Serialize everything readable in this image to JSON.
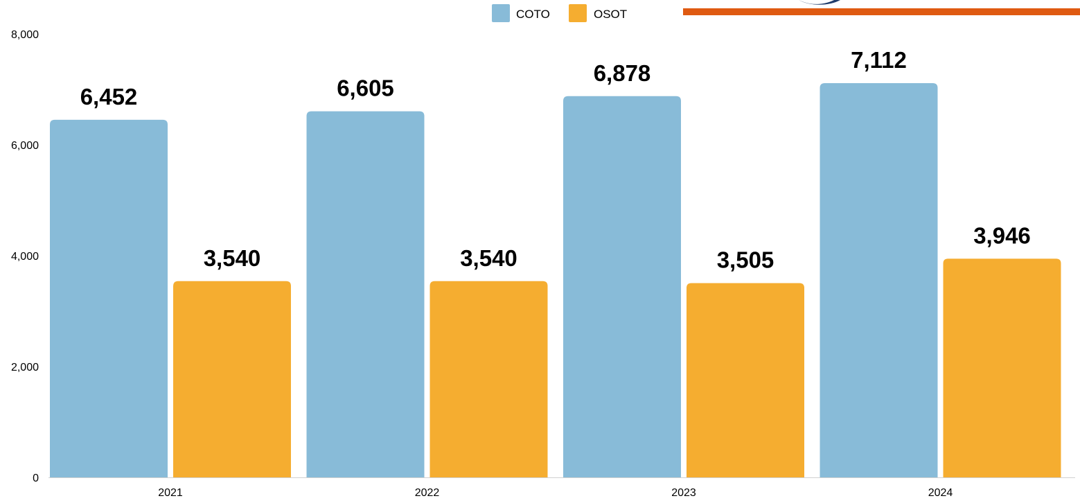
{
  "colors": {
    "coto": "#88bbd8",
    "osot": "#f5ad30",
    "accent_line": "#df5a11",
    "accent_arc": "#1f3c6b",
    "axis_line": "#d0d0d0",
    "text": "#000000"
  },
  "chart_data": {
    "type": "bar",
    "title": "",
    "xlabel": "",
    "ylabel": "",
    "categories": [
      "2021",
      "2022",
      "2023",
      "2024"
    ],
    "series": [
      {
        "name": "COTO",
        "color": "#88bbd8",
        "values": [
          6452,
          6605,
          6878,
          7112
        ],
        "labels": [
          "6,452",
          "6,605",
          "6,878",
          "7,112"
        ]
      },
      {
        "name": "OSOT",
        "color": "#f5ad30",
        "values": [
          3540,
          3540,
          3505,
          3946
        ],
        "labels": [
          "3,540",
          "3,540",
          "3,505",
          "3,946"
        ]
      }
    ],
    "ylim": [
      0,
      8000
    ],
    "yticks": [
      0,
      2000,
      4000,
      6000,
      8000
    ],
    "ytick_labels": [
      "0",
      "2,000",
      "4,000",
      "6,000",
      "8,000"
    ],
    "grid": false,
    "legend": {
      "position": "top-center",
      "entries": [
        "COTO",
        "OSOT"
      ]
    }
  }
}
